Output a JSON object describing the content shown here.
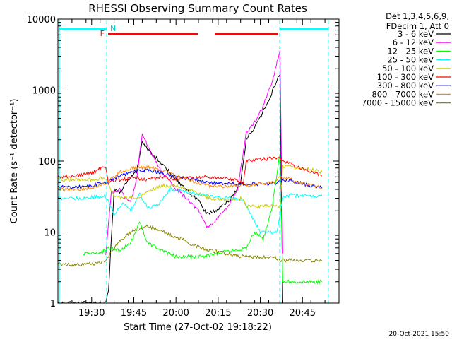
{
  "chart_data": {
    "type": "line",
    "title": "RHESSI Observing Summary Count Rates",
    "xlabel": "Start Time (27-Oct-02 19:18:22)",
    "ylabel": "Count Rate (s⁻¹ detector⁻¹)",
    "y_scale": "log",
    "ylim": [
      1,
      10000
    ],
    "y_ticks": [
      {
        "value": 1,
        "label": "1"
      },
      {
        "value": 10,
        "label": "10"
      },
      {
        "value": 100,
        "label": "100"
      },
      {
        "value": 1000,
        "label": "1000"
      },
      {
        "value": 10000,
        "label": "10000"
      }
    ],
    "xlim": [
      "19:18",
      "20:58"
    ],
    "x_ticks": [
      {
        "value": "19:30",
        "label": "19:30"
      },
      {
        "value": "19:45",
        "label": "19:45"
      },
      {
        "value": "20:00",
        "label": "20:00"
      },
      {
        "value": "20:15",
        "label": "20:15"
      },
      {
        "value": "20:30",
        "label": "20:30"
      },
      {
        "value": "20:45",
        "label": "20:45"
      }
    ],
    "legend_header": [
      "Det 1,3,4,5,6,9,",
      "FDecim 1, Att 0"
    ],
    "legend_position": "right",
    "series": [
      {
        "name": "3 - 6 keV",
        "color": "#000000",
        "x": [
          "19:18",
          "19:25",
          "19:35",
          "19:36",
          "19:38",
          "19:40",
          "19:43",
          "19:46",
          "19:48",
          "19:52",
          "19:57",
          "20:01",
          "20:04",
          "20:08",
          "20:11",
          "20:14",
          "20:19",
          "20:23",
          "20:25",
          "20:28",
          "20:31",
          "20:34",
          "20:37",
          "20:38"
        ],
        "y": [
          1,
          1,
          1,
          1.5,
          40,
          36,
          55,
          70,
          180,
          120,
          75,
          50,
          38,
          28,
          18,
          20,
          28,
          48,
          200,
          300,
          500,
          900,
          1700,
          1
        ]
      },
      {
        "name": "6 - 12 keV",
        "color": "#ff00ff",
        "x": [
          "19:35",
          "19:37",
          "19:40",
          "19:42",
          "19:44",
          "19:46",
          "19:48",
          "19:51",
          "19:55",
          "20:00",
          "20:04",
          "20:08",
          "20:11",
          "20:14",
          "20:18",
          "20:22",
          "20:25",
          "20:28",
          "20:31",
          "20:34",
          "20:36",
          "20:37",
          "20:38"
        ],
        "y": [
          5,
          35,
          40,
          30,
          28,
          55,
          250,
          130,
          70,
          40,
          30,
          20,
          12,
          14,
          22,
          40,
          250,
          350,
          600,
          1200,
          2500,
          3600,
          5
        ]
      },
      {
        "name": "12 - 25 keV",
        "color": "#00ff00",
        "x": [
          "19:27",
          "19:33",
          "19:36",
          "19:40",
          "19:44",
          "19:47",
          "19:50",
          "19:55",
          "20:00",
          "20:05",
          "20:10",
          "20:15",
          "20:20",
          "20:25",
          "20:28",
          "20:31",
          "20:34",
          "20:36",
          "20:37",
          "20:38",
          "20:40",
          "20:52"
        ],
        "y": [
          5,
          5,
          6,
          5.5,
          7,
          14,
          7,
          5.5,
          4.5,
          4.5,
          4.5,
          5,
          5.5,
          6,
          10,
          8,
          20,
          70,
          130,
          2,
          2,
          2
        ]
      },
      {
        "name": "25 - 50 keV",
        "color": "#00ffff",
        "x": [
          "19:18",
          "19:25",
          "19:30",
          "19:35",
          "19:38",
          "19:41",
          "19:44",
          "19:47",
          "19:50",
          "19:54",
          "19:58",
          "20:02",
          "20:06",
          "20:12",
          "20:18",
          "20:24",
          "20:30",
          "20:36",
          "20:38",
          "20:40",
          "20:52"
        ],
        "y": [
          30,
          30,
          31,
          32,
          18,
          25,
          20,
          35,
          22,
          25,
          40,
          38,
          35,
          32,
          30,
          28,
          10,
          10,
          30,
          33,
          32
        ]
      },
      {
        "name": "50 - 100 keV",
        "color": "#cccc00",
        "x": [
          "19:18",
          "19:30",
          "19:35",
          "19:38",
          "19:42",
          "19:46",
          "19:50",
          "19:55",
          "20:00",
          "20:06",
          "20:12",
          "20:18",
          "20:24",
          "20:25",
          "20:30",
          "20:35",
          "20:37",
          "20:38",
          "20:45",
          "20:52"
        ],
        "y": [
          55,
          55,
          58,
          32,
          30,
          30,
          38,
          45,
          45,
          38,
          30,
          28,
          30,
          23,
          23,
          24,
          22,
          85,
          80,
          70
        ]
      },
      {
        "name": "100 - 300 keV",
        "color": "#ff0000",
        "x": [
          "19:18",
          "19:25",
          "19:30",
          "19:35",
          "19:36",
          "19:40",
          "19:45",
          "19:50",
          "19:55",
          "20:00",
          "20:06",
          "20:12",
          "20:18",
          "20:24",
          "20:25",
          "20:30",
          "20:35",
          "20:37",
          "20:38",
          "20:45",
          "20:52"
        ],
        "y": [
          60,
          62,
          68,
          85,
          50,
          55,
          58,
          55,
          60,
          55,
          58,
          60,
          58,
          50,
          100,
          105,
          110,
          110,
          100,
          78,
          62
        ]
      },
      {
        "name": "300 - 800 keV",
        "color": "#0000ff",
        "x": [
          "19:18",
          "19:25",
          "19:30",
          "19:35",
          "19:40",
          "19:45",
          "19:50",
          "19:55",
          "20:00",
          "20:06",
          "20:12",
          "20:18",
          "20:24",
          "20:30",
          "20:35",
          "20:37",
          "20:38",
          "20:45",
          "20:52"
        ],
        "y": [
          43,
          43,
          45,
          50,
          62,
          72,
          75,
          68,
          60,
          55,
          50,
          48,
          48,
          48,
          48,
          52,
          55,
          48,
          42
        ]
      },
      {
        "name": "800 - 7000 keV",
        "color": "#ff8800",
        "x": [
          "19:18",
          "19:25",
          "19:30",
          "19:35",
          "19:40",
          "19:45",
          "19:50",
          "19:55",
          "20:00",
          "20:06",
          "20:12",
          "20:18",
          "20:24",
          "20:30",
          "20:35",
          "20:37",
          "20:38",
          "20:45",
          "20:52"
        ],
        "y": [
          40,
          40,
          42,
          48,
          70,
          80,
          82,
          75,
          62,
          52,
          45,
          44,
          45,
          48,
          52,
          60,
          60,
          48,
          42
        ]
      },
      {
        "name": "7000 - 15000 keV",
        "color": "#888800",
        "x": [
          "19:18",
          "19:25",
          "19:32",
          "19:35",
          "19:38",
          "19:42",
          "19:46",
          "19:50",
          "19:54",
          "19:58",
          "20:02",
          "20:06",
          "20:12",
          "20:18",
          "20:24",
          "20:30",
          "20:35",
          "20:37",
          "20:38",
          "20:45",
          "20:52"
        ],
        "y": [
          3.5,
          3.5,
          3.6,
          4,
          6,
          9,
          11,
          12,
          11,
          9,
          8,
          6.5,
          5.5,
          5,
          4.5,
          4.5,
          4.5,
          4,
          4,
          4,
          4
        ]
      }
    ]
  },
  "annotations": {
    "flag_f": "F",
    "flag_n": "N",
    "timestamp": "20-Oct-2021 15:50"
  },
  "colors": {
    "flag_line": "#00ffff",
    "flare_bar": "#ff0000",
    "axis": "#000000"
  }
}
